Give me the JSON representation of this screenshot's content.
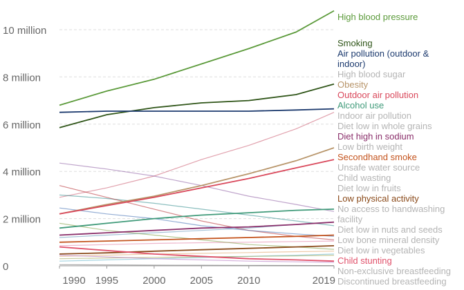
{
  "chart_data": {
    "type": "line",
    "title": "",
    "xlabel": "",
    "ylabel": "",
    "xlim": [
      1990,
      2019
    ],
    "ylim": [
      0,
      11000000
    ],
    "grid": "horizontal dashed",
    "legend_placement": "right (end-of-line labels)",
    "x_ticks": [
      1990,
      1995,
      2000,
      2005,
      2010,
      2019
    ],
    "x_tick_labels": [
      "1990",
      "1995",
      "2000",
      "2005",
      "2010",
      "2019"
    ],
    "y_ticks": [
      0,
      2000000,
      4000000,
      6000000,
      8000000,
      10000000
    ],
    "y_tick_labels": [
      "0",
      "2 million",
      "4 million",
      "6 million",
      "8 million",
      "10 million"
    ],
    "x": [
      1990,
      1995,
      2000,
      2005,
      2010,
      2015,
      2019
    ],
    "series": [
      {
        "name": "High blood pressure",
        "color": "#5b9a3a",
        "highlight": true,
        "values": [
          6800000.0,
          7400000.0,
          7900000.0,
          8550000.0,
          9200000.0,
          9900000.0,
          10800000.0
        ]
      },
      {
        "name": "Smoking",
        "color": "#2e5417",
        "highlight": true,
        "values": [
          5850000.0,
          6400000.0,
          6700000.0,
          6900000.0,
          7000000.0,
          7250000.0,
          7700000.0
        ]
      },
      {
        "name": "Air pollution (outdoor & indoor)",
        "color": "#1c3a6e",
        "highlight": true,
        "values": [
          6500000.0,
          6550000.0,
          6550000.0,
          6550000.0,
          6550000.0,
          6600000.0,
          6650000.0
        ]
      },
      {
        "name": "High blood sugar",
        "color": "#c8546a",
        "highlight": false,
        "values": [
          2900000.0,
          3300000.0,
          3800000.0,
          4500000.0,
          5100000.0,
          5800000.0,
          6500000.0
        ]
      },
      {
        "name": "Obesity",
        "color": "#b8956a",
        "highlight": true,
        "values": [
          2200000.0,
          2600000.0,
          2950000.0,
          3400000.0,
          3900000.0,
          4450000.0,
          5000000.0
        ]
      },
      {
        "name": "Outdoor air pollution",
        "color": "#d9475a",
        "highlight": true,
        "values": [
          2200000.0,
          2550000.0,
          2900000.0,
          3300000.0,
          3700000.0,
          4150000.0,
          4500000.0
        ]
      },
      {
        "name": "Indoor air pollution",
        "color": "#8a5aa0",
        "highlight": false,
        "values": [
          4350000.0,
          4100000.0,
          3800000.0,
          3400000.0,
          2950000.0,
          2600000.0,
          2300000.0
        ]
      },
      {
        "name": "Alcohol use",
        "color": "#3f9a79",
        "highlight": true,
        "values": [
          1600000.0,
          1800000.0,
          2000000.0,
          2150000.0,
          2250000.0,
          2350000.0,
          2400000.0
        ]
      },
      {
        "name": "Diet low in whole grains",
        "color": "#5a8fb5",
        "highlight": false,
        "values": [
          1200000.0,
          1300000.0,
          1400000.0,
          1500000.0,
          1600000.0,
          1750000.0,
          1850000.0
        ]
      },
      {
        "name": "Diet high in sodium",
        "color": "#8a2e6a",
        "highlight": true,
        "values": [
          1300000.0,
          1400000.0,
          1500000.0,
          1600000.0,
          1650000.0,
          1750000.0,
          1850000.0
        ]
      },
      {
        "name": "Low birth weight",
        "color": "#2e8a8a",
        "highlight": false,
        "values": [
          3000000.0,
          2850000.0,
          2650000.0,
          2400000.0,
          2150000.0,
          1900000.0,
          1700000.0
        ]
      },
      {
        "name": "Child wasting",
        "color": "#b3242a",
        "highlight": false,
        "values": [
          3400000.0,
          2900000.0,
          2400000.0,
          1900000.0,
          1500000.0,
          1250000.0,
          1100000.0
        ]
      },
      {
        "name": "Unsafe water source",
        "color": "#3a6ab0",
        "highlight": false,
        "values": [
          2450000.0,
          2200000.0,
          2000000.0,
          1700000.0,
          1500000.0,
          1350000.0,
          1250000.0
        ]
      },
      {
        "name": "Secondhand smoke",
        "color": "#c4541e",
        "highlight": true,
        "values": [
          1000000.0,
          1050000.0,
          1100000.0,
          1150000.0,
          1200000.0,
          1250000.0,
          1300000.0
        ]
      },
      {
        "name": "Diet low in fruits",
        "color": "#e07aa0",
        "highlight": false,
        "values": [
          850000.0,
          900000.0,
          950000.0,
          980000.0,
          1000000.0,
          1030000.0,
          1050000.0
        ]
      },
      {
        "name": "No access to handwashing facility",
        "color": "#7a9a3a",
        "highlight": false,
        "values": [
          1800000.0,
          1500000.0,
          1300000.0,
          1100000.0,
          900000.0,
          800000.0,
          700000.0
        ]
      },
      {
        "name": "Low physical activity",
        "color": "#8a4a1a",
        "highlight": true,
        "values": [
          500000.0,
          550000.0,
          620000.0,
          680000.0,
          740000.0,
          800000.0,
          850000.0
        ]
      },
      {
        "name": "Diet low in nuts and seeds",
        "color": "#e0a060",
        "highlight": false,
        "values": [
          400000.0,
          450000.0,
          500000.0,
          530000.0,
          560000.0,
          600000.0,
          620000.0
        ]
      },
      {
        "name": "Low bone mineral density",
        "color": "#5ab0c8",
        "highlight": false,
        "values": [
          200000.0,
          250000.0,
          300000.0,
          350000.0,
          400000.0,
          450000.0,
          500000.0
        ]
      },
      {
        "name": "Diet low in vegetables",
        "color": "#9aa04a",
        "highlight": false,
        "values": [
          300000.0,
          330000.0,
          360000.0,
          380000.0,
          400000.0,
          420000.0,
          450000.0
        ]
      },
      {
        "name": "Child stunting",
        "color": "#e0506a",
        "highlight": true,
        "values": [
          800000.0,
          650000.0,
          500000.0,
          400000.0,
          300000.0,
          250000.0,
          200000.0
        ]
      },
      {
        "name": "Non-exclusive breastfeeding",
        "color": "#b070c0",
        "highlight": false,
        "values": [
          450000.0,
          380000.0,
          300000.0,
          250000.0,
          200000.0,
          170000.0,
          150000.0
        ]
      },
      {
        "name": "Discontinued breastfeeding",
        "color": "#6a6a6a",
        "highlight": false,
        "values": [
          50000.0,
          40000.0,
          30000.0,
          25000.0,
          20000.0,
          15000.0,
          10000.0
        ]
      }
    ]
  }
}
